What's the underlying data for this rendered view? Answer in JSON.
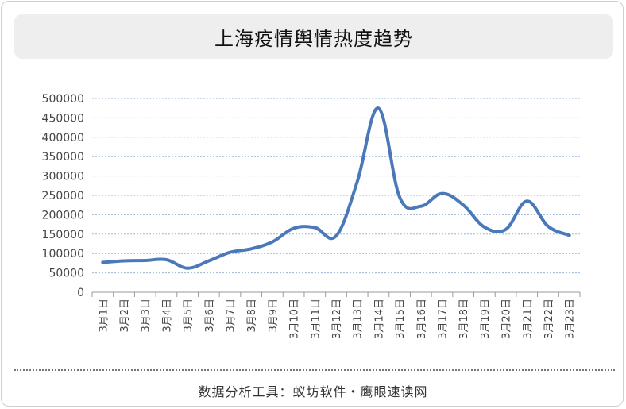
{
  "title": "上海疫情舆情热度趋势",
  "footer": "数据分析工具：蚁坊软件・鹰眼速读网",
  "colors": {
    "line": "#4a78b8",
    "grid": "#9ab5d8",
    "axis": "#999999",
    "text": "#444444",
    "title_bg": "#eeeeee"
  },
  "chart_data": {
    "type": "line",
    "title": "上海疫情舆情热度趋势",
    "xlabel": "",
    "ylabel": "",
    "ylim": [
      0,
      500000
    ],
    "yticks": [
      0,
      50000,
      100000,
      150000,
      200000,
      250000,
      300000,
      350000,
      400000,
      450000,
      500000
    ],
    "grid": true,
    "categories": [
      "3月1日",
      "3月2日",
      "3月3日",
      "3月4日",
      "3月5日",
      "3月6日",
      "3月7日",
      "3月8日",
      "3月9日",
      "3月10日",
      "3月11日",
      "3月12日",
      "3月13日",
      "3月14日",
      "3月15日",
      "3月16日",
      "3月17日",
      "3月18日",
      "3月19日",
      "3月20日",
      "3月21日",
      "3月22日",
      "3月23日"
    ],
    "series": [
      {
        "values": [
          77000,
          81000,
          82000,
          84000,
          62000,
          81000,
          103000,
          112000,
          130000,
          165000,
          167000,
          145000,
          285000,
          475000,
          245000,
          222000,
          255000,
          225000,
          168000,
          162000,
          235000,
          170000,
          147000
        ]
      }
    ]
  }
}
